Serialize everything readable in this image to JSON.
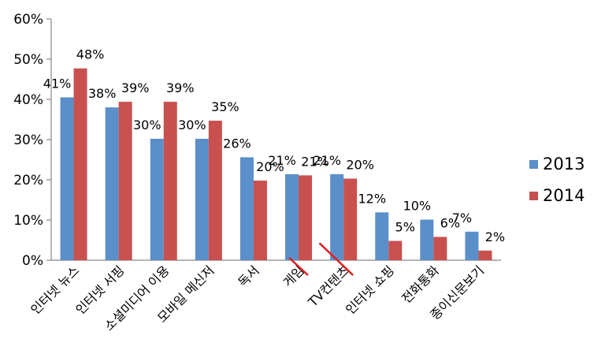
{
  "chart_data": {
    "type": "bar",
    "categories": [
      "인터넷 뉴스",
      "인터넷 서핑",
      "소셜미디어 이용",
      "모바일 메신저",
      "독서",
      "게임",
      "TV컨텐츠",
      "인터넷 쇼핑",
      "전화통화",
      "종이신문보기"
    ],
    "series": [
      {
        "name": "2013",
        "color": "#5b8fc9",
        "values": [
          40.5,
          38.0,
          30.2,
          30.2,
          25.6,
          21.4,
          21.4,
          11.9,
          10.1,
          7.1
        ],
        "labels": [
          "41%",
          "38%",
          "30%",
          "30%",
          "26%",
          "21%",
          "21%",
          "12%",
          "10%",
          "7%"
        ]
      },
      {
        "name": "2014",
        "color": "#c8514f",
        "values": [
          47.7,
          39.4,
          39.4,
          34.7,
          19.8,
          21.1,
          20.3,
          4.8,
          5.8,
          2.4
        ],
        "labels": [
          "48%",
          "39%",
          "39%",
          "35%",
          "20%",
          "21%",
          "20%",
          "5%",
          "6%",
          "2%"
        ]
      }
    ],
    "yticks": [
      "0%",
      "10%",
      "20%",
      "30%",
      "40%",
      "50%",
      "60%"
    ],
    "ylim": [
      0,
      60
    ],
    "underlined_categories": [
      "게임",
      "TV컨텐츠"
    ],
    "underline_color": "#e02020",
    "legend_position": "right",
    "grid": false,
    "title": "",
    "xlabel": "",
    "ylabel": ""
  }
}
